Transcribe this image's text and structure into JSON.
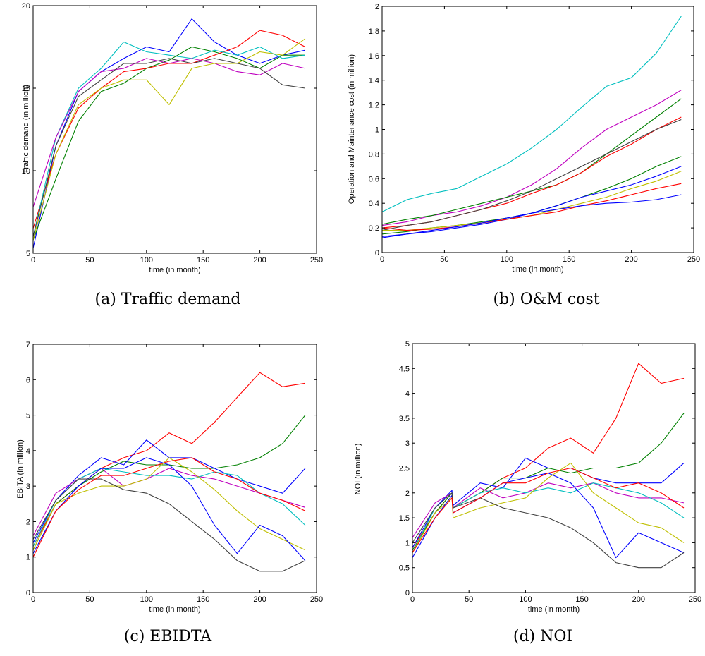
{
  "chart_data": [
    {
      "type": "line",
      "caption": "(a)  Traffic demand",
      "xlabel": "time (in month)",
      "ylabel": "Traffic demand (in million)",
      "xlim": [
        0,
        250
      ],
      "ylim": [
        5,
        20
      ],
      "xticks": [
        0,
        50,
        100,
        150,
        200,
        250
      ],
      "yticks": [
        5,
        10,
        15,
        20
      ],
      "x": [
        0,
        20,
        40,
        60,
        80,
        100,
        120,
        140,
        160,
        180,
        200,
        220,
        240
      ],
      "series": [
        {
          "color": "#0000ff",
          "values": [
            5.3,
            11.5,
            14.8,
            16.0,
            16.8,
            17.5,
            17.2,
            19.2,
            17.8,
            17.0,
            16.5,
            17.0,
            17.3
          ]
        },
        {
          "color": "#008000",
          "values": [
            5.8,
            9.5,
            13.0,
            14.8,
            15.3,
            16.2,
            16.7,
            17.5,
            17.2,
            16.8,
            16.2,
            17.0,
            17.0
          ]
        },
        {
          "color": "#ff0000",
          "values": [
            6.5,
            11.0,
            13.8,
            15.0,
            16.0,
            16.2,
            16.5,
            16.5,
            17.0,
            17.5,
            18.5,
            18.2,
            17.5
          ]
        },
        {
          "color": "#00bfbf",
          "values": [
            6.0,
            12.0,
            15.0,
            16.2,
            17.8,
            17.2,
            17.0,
            16.8,
            17.3,
            17.0,
            17.5,
            16.8,
            17.0
          ]
        },
        {
          "color": "#bf00bf",
          "values": [
            7.8,
            12.0,
            14.8,
            16.0,
            16.2,
            16.8,
            16.5,
            16.8,
            16.5,
            16.0,
            15.8,
            16.5,
            16.2
          ]
        },
        {
          "color": "#bfbf00",
          "values": [
            5.8,
            11.0,
            14.0,
            15.0,
            15.5,
            15.5,
            14.0,
            16.2,
            16.5,
            16.5,
            17.2,
            17.0,
            18.0
          ]
        },
        {
          "color": "#404040",
          "values": [
            6.0,
            11.5,
            14.5,
            15.5,
            16.5,
            16.5,
            16.8,
            16.5,
            16.8,
            16.5,
            16.2,
            15.2,
            15.0
          ]
        }
      ]
    },
    {
      "type": "line",
      "caption": "(b)  O&M cost",
      "xlabel": "time (in month)",
      "ylabel": "Operation and Maintenance cost (in million)",
      "xlim": [
        0,
        250
      ],
      "ylim": [
        0,
        2
      ],
      "xticks": [
        0,
        50,
        100,
        150,
        200,
        250
      ],
      "yticks": [
        0,
        0.2,
        0.4,
        0.6,
        0.8,
        1,
        1.2,
        1.4,
        1.6,
        1.8,
        2
      ],
      "x": [
        0,
        20,
        40,
        60,
        80,
        100,
        120,
        140,
        160,
        180,
        200,
        220,
        240
      ],
      "series": [
        {
          "color": "#00bfbf",
          "values": [
            0.33,
            0.43,
            0.48,
            0.52,
            0.62,
            0.72,
            0.85,
            1.0,
            1.18,
            1.35,
            1.42,
            1.62,
            1.92
          ]
        },
        {
          "color": "#bf00bf",
          "values": [
            0.22,
            0.25,
            0.3,
            0.33,
            0.38,
            0.45,
            0.55,
            0.68,
            0.85,
            1.0,
            1.1,
            1.2,
            1.32
          ]
        },
        {
          "color": "#008000",
          "values": [
            0.23,
            0.27,
            0.3,
            0.35,
            0.4,
            0.45,
            0.5,
            0.55,
            0.65,
            0.8,
            0.95,
            1.1,
            1.25
          ]
        },
        {
          "color": "#ff0000",
          "values": [
            0.2,
            0.22,
            0.25,
            0.3,
            0.35,
            0.4,
            0.48,
            0.55,
            0.65,
            0.78,
            0.88,
            1.0,
            1.1
          ]
        },
        {
          "color": "#404040",
          "values": [
            0.18,
            0.22,
            0.25,
            0.3,
            0.35,
            0.42,
            0.5,
            0.6,
            0.7,
            0.8,
            0.9,
            1.0,
            1.08
          ]
        },
        {
          "color": "#008000",
          "values": [
            0.15,
            0.17,
            0.2,
            0.22,
            0.25,
            0.28,
            0.32,
            0.38,
            0.45,
            0.52,
            0.6,
            0.7,
            0.78
          ]
        },
        {
          "color": "#0000ff",
          "values": [
            0.13,
            0.15,
            0.17,
            0.2,
            0.23,
            0.27,
            0.32,
            0.38,
            0.45,
            0.5,
            0.55,
            0.62,
            0.7
          ]
        },
        {
          "color": "#bfbf00",
          "values": [
            0.18,
            0.18,
            0.2,
            0.22,
            0.24,
            0.27,
            0.3,
            0.35,
            0.4,
            0.45,
            0.52,
            0.58,
            0.66
          ]
        },
        {
          "color": "#ff0000",
          "values": [
            0.2,
            0.18,
            0.19,
            0.21,
            0.24,
            0.27,
            0.3,
            0.33,
            0.38,
            0.42,
            0.47,
            0.52,
            0.56
          ]
        },
        {
          "color": "#0000ff",
          "values": [
            0.12,
            0.15,
            0.18,
            0.21,
            0.24,
            0.28,
            0.32,
            0.35,
            0.38,
            0.4,
            0.41,
            0.43,
            0.47
          ]
        }
      ]
    },
    {
      "type": "line",
      "caption": "(c)  EBIDTA",
      "xlabel": "time (in month)",
      "ylabel": "EBITA (in million)",
      "xlim": [
        0,
        250
      ],
      "ylim": [
        0,
        7
      ],
      "xticks": [
        0,
        50,
        100,
        150,
        200,
        250
      ],
      "yticks": [
        0,
        1,
        2,
        3,
        4,
        5,
        6,
        7
      ],
      "x": [
        0,
        20,
        40,
        60,
        80,
        100,
        120,
        140,
        160,
        180,
        200,
        220,
        240
      ],
      "series": [
        {
          "color": "#ff0000",
          "values": [
            1.3,
            2.5,
            3.0,
            3.5,
            3.8,
            4.0,
            4.5,
            4.2,
            4.8,
            5.5,
            6.2,
            5.8,
            5.9
          ]
        },
        {
          "color": "#008000",
          "values": [
            1.2,
            2.5,
            3.0,
            3.4,
            3.7,
            3.6,
            3.6,
            3.5,
            3.5,
            3.6,
            3.8,
            4.2,
            5.0
          ]
        },
        {
          "color": "#0000ff",
          "values": [
            1.4,
            2.6,
            3.3,
            3.8,
            3.6,
            4.3,
            3.8,
            3.8,
            3.5,
            3.2,
            3.0,
            2.8,
            3.5
          ]
        },
        {
          "color": "#bf00bf",
          "values": [
            1.6,
            2.8,
            3.2,
            3.5,
            3.0,
            3.2,
            3.5,
            3.3,
            3.2,
            3.0,
            2.8,
            2.6,
            2.4
          ]
        },
        {
          "color": "#00bfbf",
          "values": [
            1.3,
            2.6,
            3.2,
            3.5,
            3.4,
            3.3,
            3.3,
            3.2,
            3.4,
            3.3,
            2.8,
            2.5,
            1.9
          ]
        },
        {
          "color": "#bfbf00",
          "values": [
            1.2,
            2.5,
            2.8,
            3.0,
            3.0,
            3.2,
            3.8,
            3.4,
            2.9,
            2.3,
            1.8,
            1.5,
            1.2
          ]
        },
        {
          "color": "#0000ff",
          "values": [
            1.1,
            2.3,
            3.0,
            3.5,
            3.5,
            3.8,
            3.6,
            3.0,
            1.9,
            1.1,
            1.9,
            1.6,
            0.9
          ]
        },
        {
          "color": "#404040",
          "values": [
            1.5,
            2.6,
            3.2,
            3.2,
            2.9,
            2.8,
            2.5,
            2.0,
            1.5,
            0.9,
            0.6,
            0.6,
            0.9
          ]
        },
        {
          "color": "#ff0000",
          "values": [
            1.0,
            2.3,
            2.9,
            3.3,
            3.3,
            3.5,
            3.7,
            3.8,
            3.4,
            3.2,
            2.8,
            2.6,
            2.3
          ]
        }
      ]
    },
    {
      "type": "line",
      "caption": "(d)  NOI",
      "xlabel": "time (in month)",
      "ylabel": "NOI (in million)",
      "xlim": [
        0,
        250
      ],
      "ylim": [
        0,
        5
      ],
      "xticks": [
        0,
        50,
        100,
        150,
        200,
        250
      ],
      "yticks": [
        0,
        0.5,
        1,
        1.5,
        2,
        2.5,
        3,
        3.5,
        4,
        4.5,
        5
      ],
      "x": [
        0,
        20,
        35,
        36,
        60,
        80,
        100,
        120,
        140,
        160,
        180,
        200,
        220,
        240
      ],
      "series": [
        {
          "color": "#ff0000",
          "values": [
            0.9,
            1.6,
            2.0,
            1.7,
            2.0,
            2.3,
            2.5,
            2.9,
            3.1,
            2.8,
            3.5,
            4.6,
            4.2,
            4.3
          ]
        },
        {
          "color": "#008000",
          "values": [
            0.85,
            1.6,
            2.0,
            1.7,
            2.0,
            2.3,
            2.3,
            2.5,
            2.4,
            2.5,
            2.5,
            2.6,
            3.0,
            3.6
          ]
        },
        {
          "color": "#0000ff",
          "values": [
            0.9,
            1.7,
            2.05,
            1.75,
            2.2,
            2.1,
            2.7,
            2.5,
            2.5,
            2.3,
            2.2,
            2.2,
            2.2,
            2.6
          ]
        },
        {
          "color": "#bf00bf",
          "values": [
            1.1,
            1.8,
            2.0,
            1.7,
            2.1,
            1.9,
            2.0,
            2.2,
            2.1,
            2.2,
            2.0,
            1.9,
            1.9,
            1.8
          ]
        },
        {
          "color": "#00bfbf",
          "values": [
            0.8,
            1.7,
            2.0,
            1.7,
            2.0,
            2.1,
            2.0,
            2.1,
            2.0,
            2.2,
            2.1,
            2.0,
            1.8,
            1.5
          ]
        },
        {
          "color": "#bfbf00",
          "values": [
            0.8,
            1.6,
            1.9,
            1.5,
            1.7,
            1.8,
            1.9,
            2.3,
            2.6,
            2.0,
            1.7,
            1.4,
            1.3,
            1.0
          ]
        },
        {
          "color": "#0000ff",
          "values": [
            0.7,
            1.5,
            1.95,
            1.6,
            1.9,
            2.2,
            2.3,
            2.4,
            2.2,
            1.7,
            0.7,
            1.2,
            1.0,
            0.8
          ]
        },
        {
          "color": "#404040",
          "values": [
            1.0,
            1.7,
            2.0,
            1.7,
            1.9,
            1.7,
            1.6,
            1.5,
            1.3,
            1.0,
            0.6,
            0.5,
            0.5,
            0.8
          ]
        },
        {
          "color": "#ff0000",
          "values": [
            0.8,
            1.5,
            1.9,
            1.6,
            1.9,
            2.2,
            2.2,
            2.4,
            2.5,
            2.3,
            2.1,
            2.2,
            2.0,
            1.7
          ]
        }
      ]
    }
  ]
}
